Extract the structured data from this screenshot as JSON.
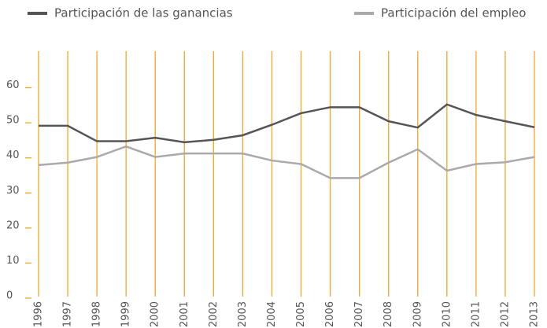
{
  "chart_data": {
    "type": "line",
    "categories": [
      "1996",
      "1997",
      "1998",
      "1999",
      "2000",
      "2001",
      "2002",
      "2003",
      "2004",
      "2005",
      "2006",
      "2007",
      "2008",
      "2009",
      "2010",
      "2011",
      "2012",
      "2013"
    ],
    "series": [
      {
        "name": "Participación de las ganancias",
        "color": "#555555",
        "values": [
          48.7,
          48.7,
          44.3,
          44.3,
          45.3,
          44.0,
          44.7,
          46.0,
          49.0,
          52.3,
          54.0,
          54.0,
          50.0,
          48.2,
          54.8,
          51.8,
          50.0,
          48.3
        ]
      },
      {
        "name": "Participación del empleo",
        "color": "#aaaaaa",
        "values": [
          37.5,
          38.2,
          39.8,
          42.8,
          39.8,
          40.8,
          40.8,
          40.8,
          38.8,
          37.8,
          33.8,
          33.8,
          38.2,
          42.0,
          35.9,
          37.8,
          38.3,
          39.8
        ]
      }
    ],
    "ylim": [
      0,
      70
    ],
    "yticks": [
      0,
      10,
      20,
      30,
      40,
      50,
      60
    ],
    "grid_color": "#f5a623"
  }
}
